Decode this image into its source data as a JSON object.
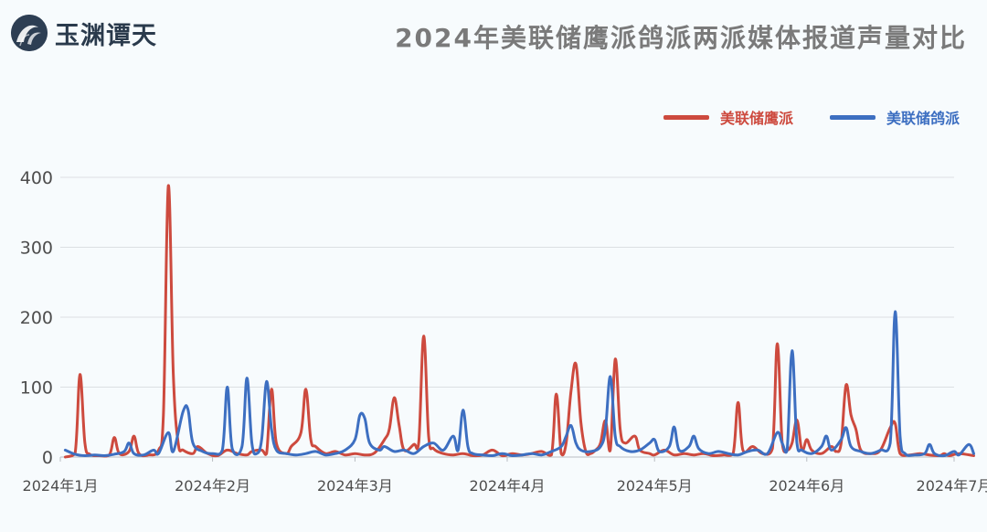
{
  "brand": {
    "name": "玉渊谭天"
  },
  "header": {
    "title": "2024年美联储鹰派鸽派两派媒体报道声量对比"
  },
  "colors": {
    "hawk": "#cd4a3e",
    "dove": "#3d6fc1",
    "grid": "#dcdfe3",
    "text": "#4d4d4d"
  },
  "chart_data": {
    "type": "line",
    "title": "2024年美联储鹰派鸽派两派媒体报道声量对比",
    "xlabel": "",
    "ylabel": "",
    "xlim": [
      "2024-01-01",
      "2024-07-01"
    ],
    "ylim": [
      0,
      400
    ],
    "yticks": [
      "0",
      "100",
      "200",
      "300",
      "400"
    ],
    "xticks": [
      "2024年1月",
      "2024年2月",
      "2024年3月",
      "2024年4月",
      "2024年5月",
      "2024年6月",
      "2024年7月"
    ],
    "grid": true,
    "legend_position": "top-right",
    "series": [
      {
        "name": "美联储鹰派",
        "color": "#cd4a3e",
        "points": [
          [
            "2024-01-02",
            0
          ],
          [
            "2024-01-04",
            5
          ],
          [
            "2024-01-05",
            118
          ],
          [
            "2024-01-06",
            20
          ],
          [
            "2024-01-07",
            4
          ],
          [
            "2024-01-09",
            2
          ],
          [
            "2024-01-11",
            3
          ],
          [
            "2024-01-12",
            28
          ],
          [
            "2024-01-13",
            5
          ],
          [
            "2024-01-15",
            8
          ],
          [
            "2024-01-16",
            30
          ],
          [
            "2024-01-17",
            5
          ],
          [
            "2024-01-19",
            3
          ],
          [
            "2024-01-21",
            10
          ],
          [
            "2024-01-22",
            60
          ],
          [
            "2024-01-23",
            388
          ],
          [
            "2024-01-24",
            120
          ],
          [
            "2024-01-25",
            20
          ],
          [
            "2024-01-26",
            10
          ],
          [
            "2024-01-28",
            5
          ],
          [
            "2024-01-29",
            15
          ],
          [
            "2024-01-31",
            5
          ],
          [
            "2024-02-02",
            2
          ],
          [
            "2024-02-04",
            10
          ],
          [
            "2024-02-06",
            5
          ],
          [
            "2024-02-08",
            3
          ],
          [
            "2024-02-09",
            8
          ],
          [
            "2024-02-11",
            10
          ],
          [
            "2024-02-12",
            5
          ],
          [
            "2024-02-13",
            97
          ],
          [
            "2024-02-14",
            20
          ],
          [
            "2024-02-16",
            5
          ],
          [
            "2024-02-17",
            15
          ],
          [
            "2024-02-19",
            35
          ],
          [
            "2024-02-20",
            97
          ],
          [
            "2024-02-21",
            25
          ],
          [
            "2024-02-22",
            15
          ],
          [
            "2024-02-24",
            5
          ],
          [
            "2024-02-26",
            8
          ],
          [
            "2024-02-28",
            3
          ],
          [
            "2024-03-01",
            5
          ],
          [
            "2024-03-03",
            3
          ],
          [
            "2024-03-05",
            6
          ],
          [
            "2024-03-07",
            25
          ],
          [
            "2024-03-08",
            40
          ],
          [
            "2024-03-09",
            85
          ],
          [
            "2024-03-10",
            45
          ],
          [
            "2024-03-11",
            10
          ],
          [
            "2024-03-13",
            18
          ],
          [
            "2024-03-14",
            22
          ],
          [
            "2024-03-15",
            173
          ],
          [
            "2024-03-16",
            30
          ],
          [
            "2024-03-17",
            12
          ],
          [
            "2024-03-19",
            5
          ],
          [
            "2024-03-21",
            3
          ],
          [
            "2024-03-23",
            5
          ],
          [
            "2024-03-25",
            2
          ],
          [
            "2024-03-27",
            3
          ],
          [
            "2024-03-29",
            10
          ],
          [
            "2024-03-31",
            2
          ],
          [
            "2024-04-02",
            5
          ],
          [
            "2024-04-04",
            3
          ],
          [
            "2024-04-06",
            5
          ],
          [
            "2024-04-08",
            8
          ],
          [
            "2024-04-10",
            3
          ],
          [
            "2024-04-11",
            90
          ],
          [
            "2024-04-12",
            5
          ],
          [
            "2024-04-13",
            20
          ],
          [
            "2024-04-14",
            95
          ],
          [
            "2024-04-15",
            133
          ],
          [
            "2024-04-16",
            50
          ],
          [
            "2024-04-17",
            8
          ],
          [
            "2024-04-18",
            5
          ],
          [
            "2024-04-19",
            10
          ],
          [
            "2024-04-20",
            20
          ],
          [
            "2024-04-21",
            52
          ],
          [
            "2024-04-22",
            10
          ],
          [
            "2024-04-23",
            140
          ],
          [
            "2024-04-24",
            40
          ],
          [
            "2024-04-25",
            20
          ],
          [
            "2024-04-27",
            30
          ],
          [
            "2024-04-28",
            10
          ],
          [
            "2024-04-30",
            5
          ],
          [
            "2024-05-01",
            3
          ],
          [
            "2024-05-03",
            10
          ],
          [
            "2024-05-05",
            3
          ],
          [
            "2024-05-07",
            5
          ],
          [
            "2024-05-09",
            3
          ],
          [
            "2024-05-11",
            5
          ],
          [
            "2024-05-13",
            2
          ],
          [
            "2024-05-15",
            3
          ],
          [
            "2024-05-17",
            5
          ],
          [
            "2024-05-18",
            78
          ],
          [
            "2024-05-19",
            10
          ],
          [
            "2024-05-21",
            15
          ],
          [
            "2024-05-23",
            5
          ],
          [
            "2024-05-25",
            12
          ],
          [
            "2024-05-26",
            162
          ],
          [
            "2024-05-27",
            20
          ],
          [
            "2024-05-28",
            10
          ],
          [
            "2024-05-29",
            20
          ],
          [
            "2024-05-30",
            53
          ],
          [
            "2024-05-31",
            10
          ],
          [
            "2024-06-01",
            25
          ],
          [
            "2024-06-02",
            10
          ],
          [
            "2024-06-04",
            5
          ],
          [
            "2024-06-06",
            15
          ],
          [
            "2024-06-07",
            8
          ],
          [
            "2024-06-08",
            20
          ],
          [
            "2024-06-09",
            103
          ],
          [
            "2024-06-10",
            60
          ],
          [
            "2024-06-11",
            40
          ],
          [
            "2024-06-12",
            10
          ],
          [
            "2024-06-14",
            5
          ],
          [
            "2024-06-16",
            10
          ],
          [
            "2024-06-18",
            42
          ],
          [
            "2024-06-19",
            48
          ],
          [
            "2024-06-20",
            5
          ],
          [
            "2024-06-22",
            3
          ],
          [
            "2024-06-24",
            5
          ],
          [
            "2024-06-26",
            3
          ],
          [
            "2024-06-28",
            2
          ],
          [
            "2024-06-29",
            5
          ],
          [
            "2024-06-30",
            2
          ],
          [
            "2024-07-02",
            5
          ],
          [
            "2024-07-05",
            2
          ]
        ]
      },
      {
        "name": "美联储鸽派",
        "color": "#3d6fc1",
        "points": [
          [
            "2024-01-02",
            10
          ],
          [
            "2024-01-04",
            4
          ],
          [
            "2024-01-06",
            2
          ],
          [
            "2024-01-08",
            3
          ],
          [
            "2024-01-10",
            2
          ],
          [
            "2024-01-12",
            4
          ],
          [
            "2024-01-14",
            8
          ],
          [
            "2024-01-15",
            20
          ],
          [
            "2024-01-16",
            5
          ],
          [
            "2024-01-18",
            3
          ],
          [
            "2024-01-20",
            10
          ],
          [
            "2024-01-21",
            5
          ],
          [
            "2024-01-23",
            35
          ],
          [
            "2024-01-24",
            8
          ],
          [
            "2024-01-26",
            65
          ],
          [
            "2024-01-27",
            68
          ],
          [
            "2024-01-28",
            20
          ],
          [
            "2024-01-30",
            8
          ],
          [
            "2024-02-01",
            5
          ],
          [
            "2024-02-03",
            10
          ],
          [
            "2024-02-04",
            100
          ],
          [
            "2024-02-05",
            12
          ],
          [
            "2024-02-07",
            15
          ],
          [
            "2024-02-08",
            113
          ],
          [
            "2024-02-09",
            20
          ],
          [
            "2024-02-10",
            5
          ],
          [
            "2024-02-11",
            25
          ],
          [
            "2024-02-12",
            108
          ],
          [
            "2024-02-13",
            40
          ],
          [
            "2024-02-14",
            10
          ],
          [
            "2024-02-16",
            5
          ],
          [
            "2024-02-18",
            3
          ],
          [
            "2024-02-20",
            5
          ],
          [
            "2024-02-22",
            8
          ],
          [
            "2024-02-24",
            3
          ],
          [
            "2024-02-26",
            5
          ],
          [
            "2024-02-28",
            10
          ],
          [
            "2024-03-01",
            25
          ],
          [
            "2024-03-02",
            60
          ],
          [
            "2024-03-03",
            55
          ],
          [
            "2024-03-04",
            20
          ],
          [
            "2024-03-06",
            10
          ],
          [
            "2024-03-07",
            15
          ],
          [
            "2024-03-09",
            8
          ],
          [
            "2024-03-11",
            10
          ],
          [
            "2024-03-13",
            5
          ],
          [
            "2024-03-15",
            15
          ],
          [
            "2024-03-17",
            20
          ],
          [
            "2024-03-19",
            10
          ],
          [
            "2024-03-21",
            30
          ],
          [
            "2024-03-22",
            10
          ],
          [
            "2024-03-23",
            67
          ],
          [
            "2024-03-24",
            15
          ],
          [
            "2024-03-25",
            5
          ],
          [
            "2024-03-27",
            3
          ],
          [
            "2024-03-29",
            2
          ],
          [
            "2024-03-31",
            5
          ],
          [
            "2024-04-02",
            2
          ],
          [
            "2024-04-04",
            3
          ],
          [
            "2024-04-06",
            5
          ],
          [
            "2024-04-08",
            3
          ],
          [
            "2024-04-10",
            8
          ],
          [
            "2024-04-12",
            15
          ],
          [
            "2024-04-13",
            30
          ],
          [
            "2024-04-14",
            45
          ],
          [
            "2024-04-15",
            20
          ],
          [
            "2024-04-16",
            10
          ],
          [
            "2024-04-18",
            8
          ],
          [
            "2024-04-20",
            15
          ],
          [
            "2024-04-21",
            40
          ],
          [
            "2024-04-22",
            115
          ],
          [
            "2024-04-23",
            30
          ],
          [
            "2024-04-24",
            15
          ],
          [
            "2024-04-26",
            8
          ],
          [
            "2024-04-28",
            10
          ],
          [
            "2024-04-30",
            20
          ],
          [
            "2024-05-01",
            25
          ],
          [
            "2024-05-02",
            8
          ],
          [
            "2024-05-04",
            15
          ],
          [
            "2024-05-05",
            43
          ],
          [
            "2024-05-06",
            10
          ],
          [
            "2024-05-08",
            15
          ],
          [
            "2024-05-09",
            30
          ],
          [
            "2024-05-10",
            12
          ],
          [
            "2024-05-12",
            5
          ],
          [
            "2024-05-14",
            8
          ],
          [
            "2024-05-16",
            5
          ],
          [
            "2024-05-18",
            3
          ],
          [
            "2024-05-20",
            8
          ],
          [
            "2024-05-22",
            10
          ],
          [
            "2024-05-24",
            5
          ],
          [
            "2024-05-26",
            35
          ],
          [
            "2024-05-27",
            20
          ],
          [
            "2024-05-28",
            10
          ],
          [
            "2024-05-29",
            152
          ],
          [
            "2024-05-30",
            20
          ],
          [
            "2024-05-31",
            10
          ],
          [
            "2024-06-02",
            5
          ],
          [
            "2024-06-04",
            15
          ],
          [
            "2024-06-05",
            30
          ],
          [
            "2024-06-06",
            10
          ],
          [
            "2024-06-08",
            25
          ],
          [
            "2024-06-09",
            42
          ],
          [
            "2024-06-10",
            15
          ],
          [
            "2024-06-12",
            8
          ],
          [
            "2024-06-14",
            5
          ],
          [
            "2024-06-16",
            10
          ],
          [
            "2024-06-18",
            20
          ],
          [
            "2024-06-19",
            208
          ],
          [
            "2024-06-20",
            30
          ],
          [
            "2024-06-21",
            5
          ],
          [
            "2024-06-23",
            3
          ],
          [
            "2024-06-25",
            5
          ],
          [
            "2024-06-26",
            18
          ],
          [
            "2024-06-27",
            5
          ],
          [
            "2024-06-29",
            2
          ],
          [
            "2024-07-01",
            8
          ],
          [
            "2024-07-02",
            3
          ],
          [
            "2024-07-04",
            18
          ],
          [
            "2024-07-05",
            5
          ]
        ]
      }
    ]
  }
}
